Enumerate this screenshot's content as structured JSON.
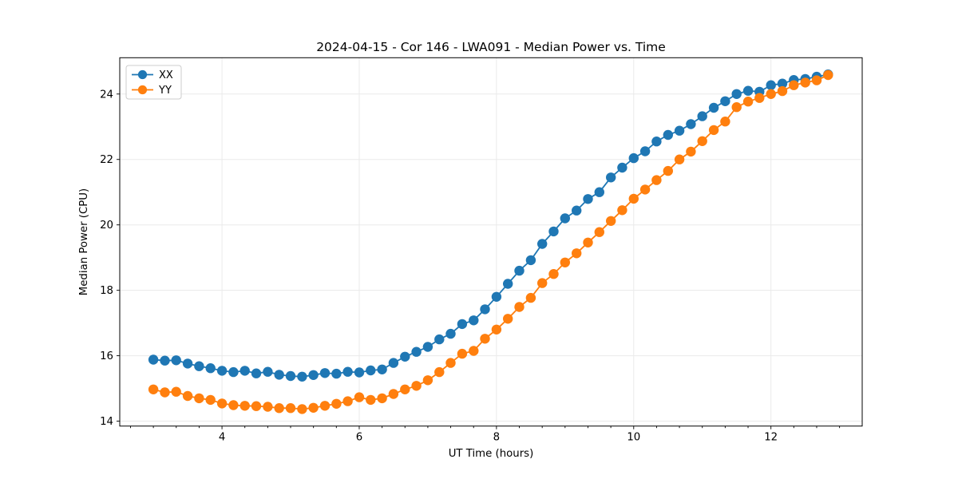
{
  "figure": {
    "title": "2024-04-15 - Cor 146 - LWA091 - Median Power vs. Time"
  },
  "chart_data": {
    "type": "line",
    "title": "2024-04-15 - Cor 146 - LWA091 - Median Power vs. Time",
    "xlabel": "UT Time (hours)",
    "ylabel": "Median Power (CPU)",
    "xlim": [
      2.51,
      13.33
    ],
    "ylim": [
      13.85,
      25.11
    ],
    "xticks": [
      4,
      6,
      8,
      10,
      12
    ],
    "yticks": [
      14,
      16,
      18,
      20,
      22,
      24
    ],
    "x_minor_step": 0.33333,
    "grid": true,
    "grid_color": "#eaeaea",
    "legend_position": "upper left",
    "marker": "circle",
    "x": [
      3.0,
      3.167,
      3.333,
      3.5,
      3.667,
      3.833,
      4.0,
      4.167,
      4.333,
      4.5,
      4.667,
      4.833,
      5.0,
      5.167,
      5.333,
      5.5,
      5.667,
      5.833,
      6.0,
      6.167,
      6.333,
      6.5,
      6.667,
      6.833,
      7.0,
      7.167,
      7.333,
      7.5,
      7.667,
      7.833,
      8.0,
      8.167,
      8.333,
      8.5,
      8.667,
      8.833,
      9.0,
      9.167,
      9.333,
      9.5,
      9.667,
      9.833,
      10.0,
      10.167,
      10.333,
      10.5,
      10.667,
      10.833,
      11.0,
      11.167,
      11.333,
      11.5,
      11.667,
      11.833,
      12.0,
      12.167,
      12.333,
      12.5,
      12.667,
      12.833
    ],
    "series": [
      {
        "name": "XX",
        "color": "#1f77b4",
        "values": [
          15.88,
          15.85,
          15.86,
          15.76,
          15.68,
          15.62,
          15.54,
          15.5,
          15.54,
          15.46,
          15.51,
          15.42,
          15.38,
          15.36,
          15.41,
          15.47,
          15.45,
          15.51,
          15.49,
          15.55,
          15.58,
          15.78,
          15.97,
          16.12,
          16.27,
          16.5,
          16.67,
          16.97,
          17.08,
          17.42,
          17.8,
          18.2,
          18.6,
          18.92,
          19.42,
          19.8,
          20.2,
          20.44,
          20.79,
          21.0,
          21.45,
          21.75,
          22.04,
          22.25,
          22.55,
          22.75,
          22.88,
          23.08,
          23.32,
          23.58,
          23.78,
          24.0,
          24.1,
          24.07,
          24.27,
          24.32,
          24.43,
          24.46,
          24.53,
          24.6
        ]
      },
      {
        "name": "YY",
        "color": "#ff7f0e",
        "values": [
          14.97,
          14.88,
          14.9,
          14.77,
          14.7,
          14.65,
          14.54,
          14.49,
          14.47,
          14.46,
          14.44,
          14.4,
          14.4,
          14.37,
          14.41,
          14.47,
          14.53,
          14.61,
          14.73,
          14.65,
          14.7,
          14.83,
          14.97,
          15.08,
          15.25,
          15.5,
          15.78,
          16.06,
          16.15,
          16.52,
          16.8,
          17.13,
          17.49,
          17.77,
          18.22,
          18.5,
          18.85,
          19.13,
          19.46,
          19.78,
          20.12,
          20.45,
          20.8,
          21.08,
          21.37,
          21.65,
          22.0,
          22.24,
          22.56,
          22.9,
          23.16,
          23.6,
          23.77,
          23.88,
          24.0,
          24.09,
          24.27,
          24.35,
          24.42,
          24.58
        ]
      }
    ]
  }
}
